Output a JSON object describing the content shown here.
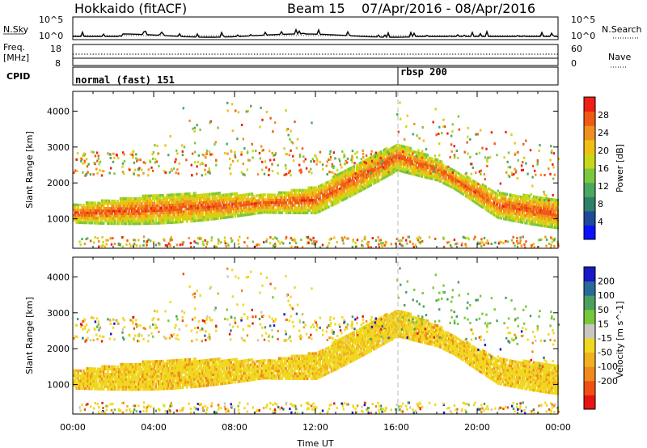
{
  "header": {
    "station": "Hokkaido (fitACF)",
    "beam": "Beam 15",
    "dates": "07/Apr/2016 - 08/Apr/2016"
  },
  "nsky_panel": {
    "left_label": "N.Sky",
    "right_label": "N.Search",
    "tick_top": "10^5",
    "tick_bottom": "10^0",
    "right_tick_top": "10^5",
    "right_tick_bottom": "10^0"
  },
  "freq_panel": {
    "left_label_1": "Freq.",
    "left_label_2": "[MHz]",
    "tick_top": "18",
    "tick_bottom": "8",
    "right_label": "Nave",
    "right_tick_top": "60",
    "right_tick_bottom": "0"
  },
  "cpid_panel": {
    "label": "CPID",
    "mode_1": "normal (fast) 151",
    "mode_2": "rbsp 200"
  },
  "chart_data": [
    {
      "type": "heatmap",
      "quantity": "power",
      "ylabel": "Slant Range [km]",
      "ylim": [
        180,
        4550
      ],
      "yticks": [
        "1000",
        "2000",
        "3000",
        "4000"
      ],
      "colorbar_label": "Power [dB]",
      "colorbar_ticks": [
        "4",
        "8",
        "12",
        "16",
        "20",
        "24",
        "28"
      ],
      "colorbar_range": [
        0,
        32
      ],
      "colors": [
        "#0a12ff",
        "#1f4a9a",
        "#2f7f6a",
        "#4aa860",
        "#7cc83c",
        "#c8d818",
        "#f0c010",
        "#f09020",
        "#f05a14",
        "#f01e14"
      ]
    },
    {
      "type": "heatmap",
      "quantity": "velocity",
      "ylabel": "Slant Range [km]",
      "ylim": [
        180,
        4550
      ],
      "yticks": [
        "1000",
        "2000",
        "3000",
        "4000"
      ],
      "xlabel": "Time UT",
      "xticks": [
        "00:00",
        "04:00",
        "08:00",
        "12:00",
        "16:00",
        "20:00",
        "00:00"
      ],
      "colorbar_label": "Velocity [m s^-1]",
      "colorbar_ticks": [
        "200",
        "100",
        "50",
        "15",
        "-15",
        "-50",
        "-100",
        "-200"
      ],
      "colors": [
        "#1818c8",
        "#2a6a9a",
        "#4aa060",
        "#78c83c",
        "#c8c8c0",
        "#f0d820",
        "#f0b020",
        "#f08a1e",
        "#f05014",
        "#e81414"
      ]
    }
  ]
}
